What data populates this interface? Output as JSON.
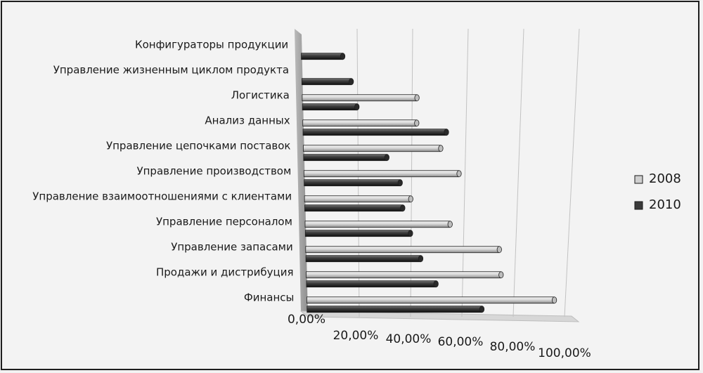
{
  "chart_data": {
    "type": "bar",
    "orientation": "horizontal",
    "style": "3d-cylinder",
    "categories": [
      "Финансы",
      "Продажи и дистрибуция",
      "Управление запасами",
      "Управление персоналом",
      "Управление взаимоотношениями с клиентами",
      "Управление производством",
      "Управление цепочками поставок",
      "Анализ данных",
      "Логистика",
      "Управление жизненным циклом продукта",
      "Конфигураторы продукции"
    ],
    "series": [
      {
        "name": "2008",
        "color": "#cfcfcf",
        "values": [
          96,
          75,
          74,
          55,
          40,
          58,
          51,
          42,
          42,
          null,
          null
        ]
      },
      {
        "name": "2010",
        "color": "#3a3a3a",
        "values": [
          68,
          50,
          44,
          40,
          37,
          36,
          31,
          53,
          20,
          18,
          15
        ]
      }
    ],
    "x_ticks": [
      "0,00%",
      "20,00%",
      "40,00%",
      "60,00%",
      "80,00%",
      "100,00%"
    ],
    "xlim": [
      0,
      100
    ],
    "grid": true,
    "legend_position": "right"
  }
}
